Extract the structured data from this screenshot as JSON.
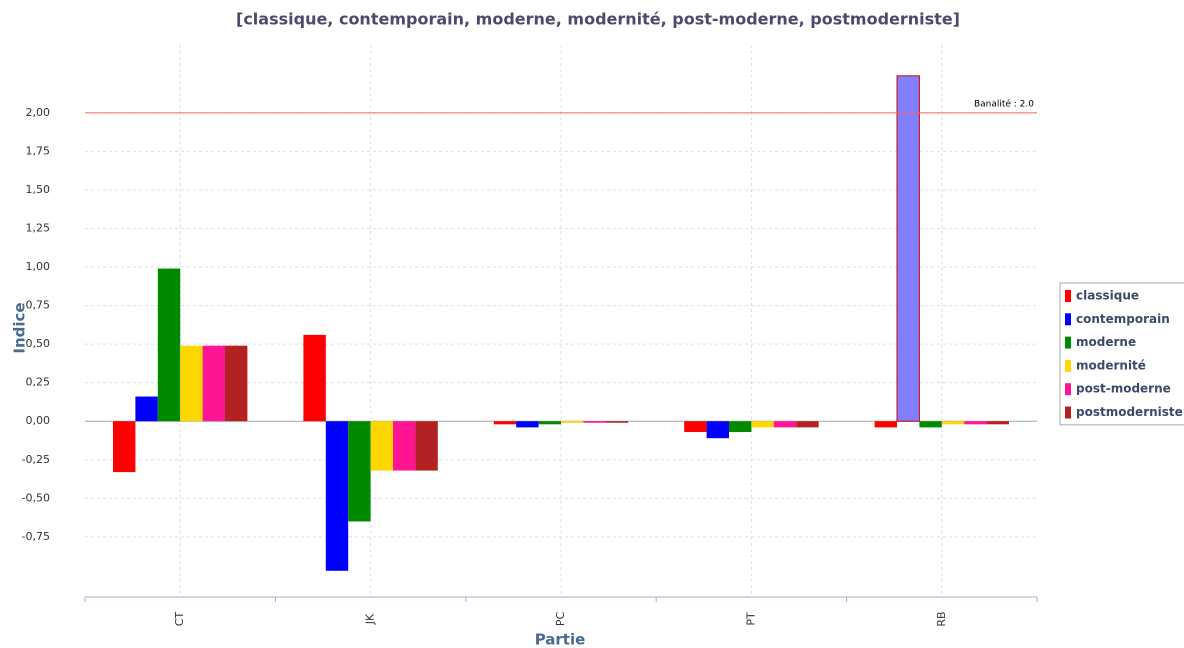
{
  "chart_data": {
    "type": "bar",
    "title": "[classique, contemporain, moderne, modernité, post-moderne, postmoderniste]",
    "x_label": "Partie",
    "y_label": "Indice",
    "categories": [
      "CT",
      "JK",
      "PC",
      "PT",
      "RB"
    ],
    "series": [
      {
        "name": "classique",
        "color": "#ff0000",
        "values": [
          -0.33,
          0.56,
          -0.02,
          -0.07,
          -0.04
        ]
      },
      {
        "name": "contemporain",
        "color": "#0000ff",
        "values": [
          0.16,
          -0.97,
          -0.04,
          -0.11,
          2.24
        ]
      },
      {
        "name": "moderne",
        "color": "#008a00",
        "values": [
          0.99,
          -0.65,
          -0.02,
          -0.07,
          -0.04
        ]
      },
      {
        "name": "modernité",
        "color": "#ffd700",
        "values": [
          0.49,
          -0.32,
          -0.01,
          -0.04,
          -0.02
        ]
      },
      {
        "name": "post-moderne",
        "color": "#ff1493",
        "values": [
          0.49,
          -0.32,
          -0.01,
          -0.04,
          -0.02
        ]
      },
      {
        "name": "postmoderniste",
        "color": "#b22222",
        "values": [
          0.49,
          -0.32,
          -0.01,
          -0.04,
          -0.02
        ]
      }
    ],
    "highlight": {
      "series": 1,
      "index": 4,
      "color": "#8080ff",
      "stroke": "#cc0000"
    },
    "threshold": {
      "value": 2.0,
      "label": "Banalité : 2.0",
      "color": "#ff6060"
    },
    "ylim": [
      -1.14,
      2.44
    ],
    "yticks": [
      {
        "value": -0.75,
        "label": "-0,75"
      },
      {
        "value": -0.5,
        "label": "-0,50"
      },
      {
        "value": -0.25,
        "label": "-0,25"
      },
      {
        "value": 0,
        "label": "0,00"
      },
      {
        "value": 0.25,
        "label": "0,25"
      },
      {
        "value": 0.5,
        "label": "0,50"
      },
      {
        "value": 0.75,
        "label": "0,75"
      },
      {
        "value": 1,
        "label": "1,00"
      },
      {
        "value": 1.25,
        "label": "1,25"
      },
      {
        "value": 1.5,
        "label": "1,50"
      },
      {
        "value": 1.75,
        "label": "1,75"
      },
      {
        "value": 2,
        "label": "2,00"
      }
    ],
    "grid": true,
    "legend": "right"
  }
}
